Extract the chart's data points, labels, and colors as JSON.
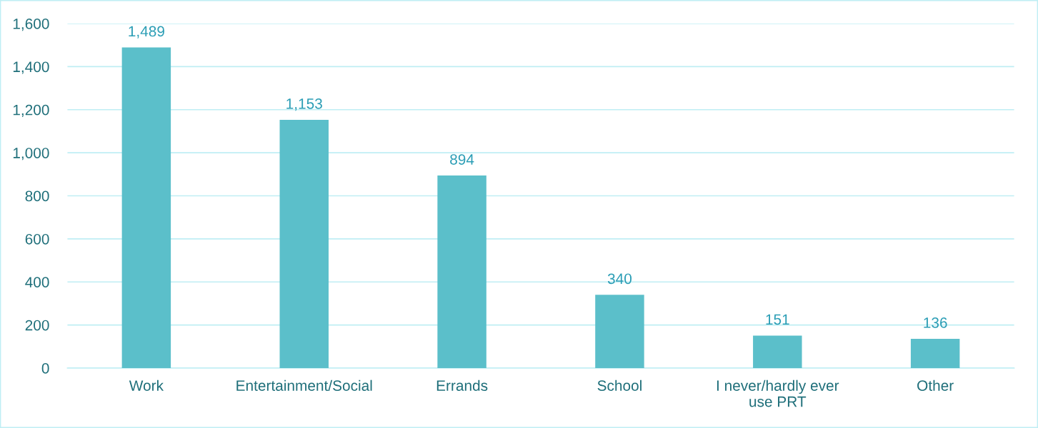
{
  "chart_data": {
    "type": "bar",
    "categories": [
      "Work",
      "Entertainment/Social",
      "Errands",
      "School",
      "I never/hardly ever\nuse PRT",
      "Other"
    ],
    "values": [
      1489,
      1153,
      894,
      340,
      151,
      136
    ],
    "color": "#5bbfca",
    "ylim": [
      0,
      1600
    ],
    "yticks": [
      {
        "value": 0,
        "label": "0"
      },
      {
        "value": 200,
        "label": "200"
      },
      {
        "value": 400,
        "label": "400"
      },
      {
        "value": 600,
        "label": "600"
      },
      {
        "value": 800,
        "label": "800"
      },
      {
        "value": 1000,
        "label": "1,000"
      },
      {
        "value": 1200,
        "label": "1,200"
      },
      {
        "value": 1400,
        "label": "1,400"
      },
      {
        "value": 1600,
        "label": "1,600"
      }
    ],
    "grid": "y",
    "legend": false,
    "value_labels": [
      "1,489",
      "1,153",
      "894",
      "340",
      "151",
      "136"
    ]
  }
}
